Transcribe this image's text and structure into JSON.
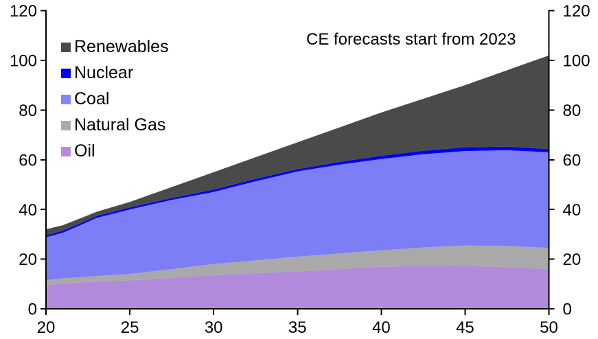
{
  "chart_data": {
    "type": "area",
    "stacked": true,
    "title": "",
    "xlabel": "",
    "ylabel": "",
    "annotation": "CE forecasts start from 2023",
    "xlim": [
      20,
      50
    ],
    "ylim": [
      0,
      120
    ],
    "x_ticks": [
      20,
      25,
      30,
      35,
      40,
      45,
      50
    ],
    "y_ticks": [
      0,
      20,
      40,
      60,
      80,
      100,
      120
    ],
    "grid": false,
    "axis_color": "#000000",
    "x": [
      20,
      21,
      22,
      23,
      25,
      27.5,
      30,
      32.5,
      35,
      37.5,
      40,
      42.5,
      45,
      47.5,
      50
    ],
    "series": [
      {
        "name": "Oil",
        "color": "#b28adb",
        "legend_color": "#b98ae0",
        "values": [
          9.5,
          10.2,
          10.6,
          11.0,
          11.5,
          12.5,
          13.5,
          14.3,
          15.0,
          16.0,
          17.0,
          17.2,
          17.3,
          16.8,
          16.0
        ]
      },
      {
        "name": "Natural Gas",
        "color": "#a9a9a9",
        "legend_color": "#ababab",
        "values": [
          2.0,
          2.1,
          2.1,
          2.2,
          2.5,
          3.5,
          4.5,
          5.2,
          6.0,
          6.3,
          6.5,
          7.5,
          8.2,
          8.5,
          8.5
        ]
      },
      {
        "name": "Coal",
        "color": "#7d7df5",
        "legend_color": "#8585f7",
        "values": [
          17.3,
          18.3,
          20.8,
          23.3,
          26.0,
          27.8,
          29.0,
          31.8,
          34.3,
          35.7,
          36.8,
          37.5,
          38.0,
          38.5,
          38.5
        ]
      },
      {
        "name": "Nuclear",
        "color": "#0000f0",
        "legend_color": "#0000f8",
        "values": [
          0.8,
          0.8,
          0.8,
          0.8,
          0.8,
          0.8,
          1.0,
          1.0,
          0.9,
          1.1,
          1.3,
          1.4,
          1.5,
          1.5,
          1.3
        ]
      },
      {
        "name": "Renewables",
        "color": "#4a4a4a",
        "legend_color": "#4a4a4a",
        "values": [
          2.4,
          2.2,
          2.0,
          1.7,
          2.2,
          4.4,
          7.0,
          8.7,
          10.8,
          13.9,
          17.4,
          20.9,
          25.0,
          30.7,
          37.7
        ]
      }
    ],
    "legend": {
      "position": "top-left",
      "order": [
        "Renewables",
        "Nuclear",
        "Coal",
        "Natural Gas",
        "Oil"
      ]
    }
  }
}
